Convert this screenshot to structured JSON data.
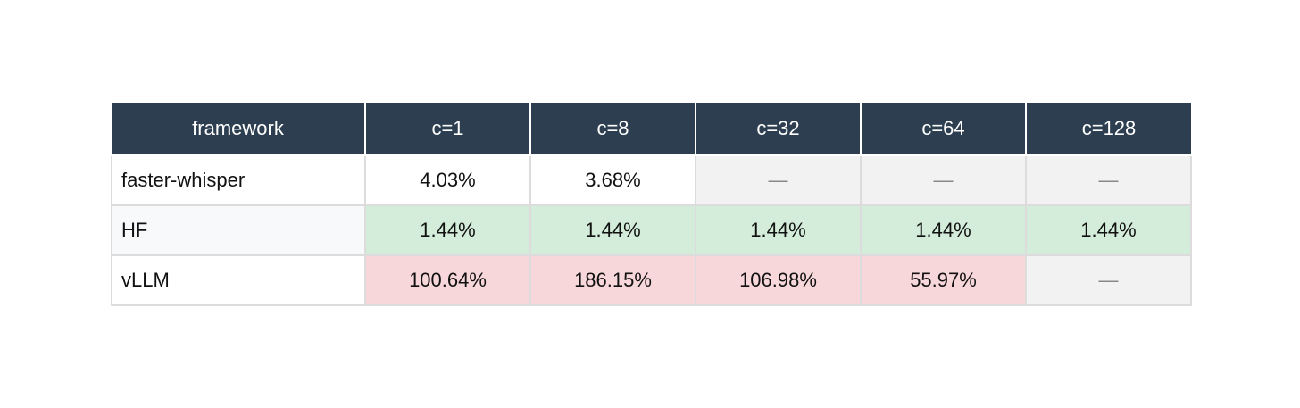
{
  "table": {
    "header": [
      "framework",
      "c=1",
      "c=8",
      "c=32",
      "c=64",
      "c=128"
    ],
    "rows": [
      [
        "faster-whisper",
        "4.03%",
        "3.68%",
        "—",
        "—",
        "—"
      ],
      [
        "HF",
        "1.44%",
        "1.44%",
        "1.44%",
        "1.44%",
        "1.44%"
      ],
      [
        "vLLM",
        "100.64%",
        "186.15%",
        "106.98%",
        "55.97%",
        "—"
      ]
    ]
  }
}
